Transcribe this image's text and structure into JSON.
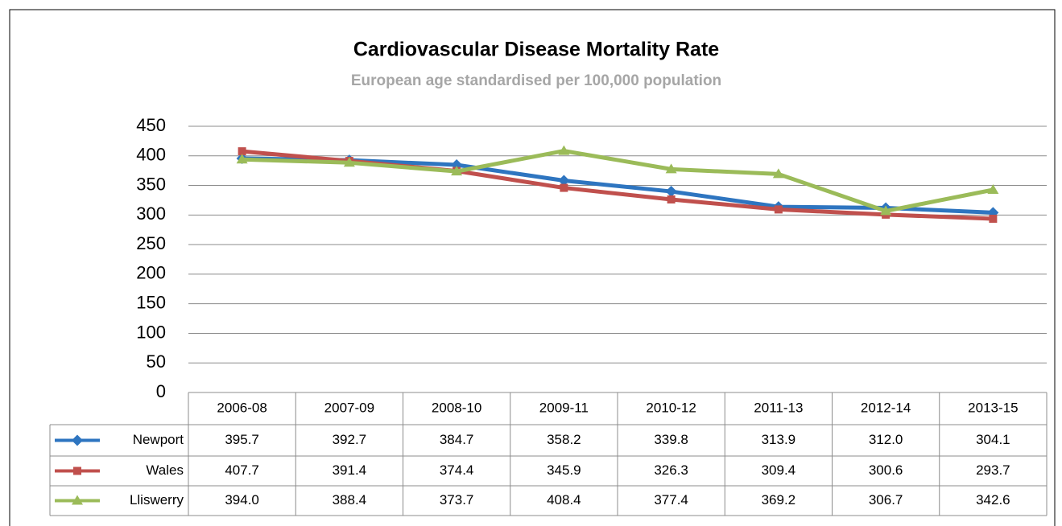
{
  "chart_data": {
    "type": "line",
    "title": "Cardiovascular  Disease Mortality Rate",
    "subtitle": "European age standardised  per 100,000 population",
    "categories": [
      "2006-08",
      "2007-09",
      "2008-10",
      "2009-11",
      "2010-12",
      "2011-13",
      "2012-14",
      "2013-15"
    ],
    "series": [
      {
        "name": "Newport",
        "color": "#2e75c0",
        "marker": "diamond",
        "values": [
          395.7,
          392.7,
          384.7,
          358.2,
          339.8,
          313.9,
          312.0,
          304.1
        ],
        "value_labels": [
          "395.7",
          "392.7",
          "384.7",
          "358.2",
          "339.8",
          "313.9",
          "312.0",
          "304.1"
        ]
      },
      {
        "name": "Wales",
        "color": "#c0504d",
        "marker": "square",
        "values": [
          407.7,
          391.4,
          374.4,
          345.9,
          326.3,
          309.4,
          300.6,
          293.7
        ],
        "value_labels": [
          "407.7",
          "391.4",
          "374.4",
          "345.9",
          "326.3",
          "309.4",
          "300.6",
          "293.7"
        ]
      },
      {
        "name": "Lliswerry",
        "color": "#9bbb59",
        "marker": "triangle",
        "values": [
          394.0,
          388.4,
          373.7,
          408.4,
          377.4,
          369.2,
          306.7,
          342.6
        ],
        "value_labels": [
          "394.0",
          "388.4",
          "373.7",
          "408.4",
          "377.4",
          "369.2",
          "306.7",
          "342.6"
        ]
      }
    ],
    "ylim": [
      0,
      450
    ],
    "yticks": [
      0,
      50,
      100,
      150,
      200,
      250,
      300,
      350,
      400,
      450
    ],
    "grid": true
  }
}
